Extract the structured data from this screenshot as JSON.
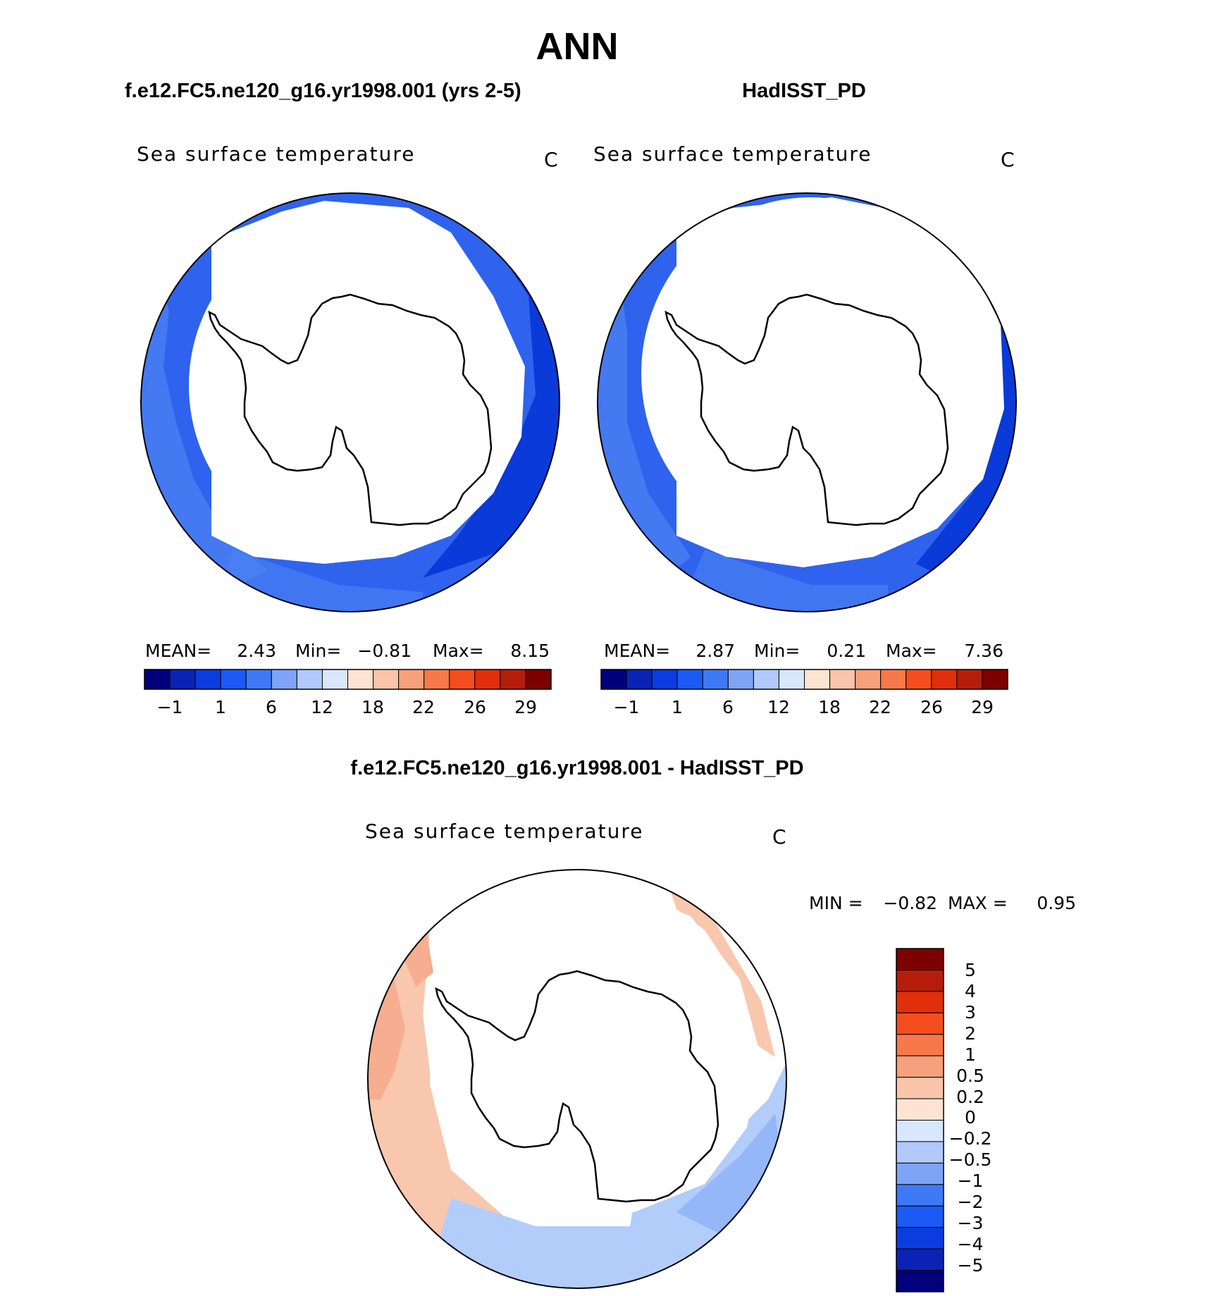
{
  "figure": {
    "title": "ANN",
    "colors": {
      "coast": "#000000",
      "ocean_dark": "#0a3ad8",
      "ocean_mid": "#2f68ef",
      "ocean_light": "#5a8ef6",
      "diff_pos": "#f9c7ad",
      "diff_pos2": "#f6ad90",
      "diff_neg": "#b3cdfa",
      "diff_neg2": "#8fb2f6"
    }
  },
  "panels": [
    {
      "header": "f.e12.FC5.ne120_g16.yr1998.001 (yrs 2-5)",
      "variable": "Sea surface temperature",
      "units": "C",
      "stats": {
        "mean_label": "MEAN=",
        "mean": "2.43",
        "min_label": "Min=",
        "min": "−0.81",
        "max_label": "Max=",
        "max": "8.15"
      },
      "colorbar_labels": [
        "−1",
        "1",
        "6",
        "12",
        "18",
        "22",
        "26",
        "29"
      ]
    },
    {
      "header": "HadISST_PD",
      "variable": "Sea surface temperature",
      "units": "C",
      "stats": {
        "mean_label": "MEAN=",
        "mean": "2.87",
        "min_label": "Min=",
        "min": "0.21",
        "max_label": "Max=",
        "max": "7.36"
      },
      "colorbar_labels": [
        "−1",
        "1",
        "6",
        "12",
        "18",
        "22",
        "26",
        "29"
      ]
    }
  ],
  "diff_panel": {
    "header": "f.e12.FC5.ne120_g16.yr1998.001 - HadISST_PD",
    "variable": "Sea surface temperature",
    "units": "C",
    "stats": {
      "min_label": "MIN =",
      "min": "−0.82",
      "max_label": "MAX =",
      "max": "0.95"
    },
    "colorbar_labels": [
      "5",
      "4",
      "3",
      "2",
      "1",
      "0.5",
      "0.2",
      "0",
      "−0.2",
      "−0.5",
      "−1",
      "−2",
      "−3",
      "−4",
      "−5"
    ]
  },
  "sst_palette": [
    "#00007d",
    "#0a23b4",
    "#0b3ce0",
    "#1c5af5",
    "#3f78f6",
    "#7ea4f8",
    "#b1c9fb",
    "#d9e7fd",
    "#fde4d2",
    "#fac5aa",
    "#f7a07c",
    "#f7794a",
    "#f54d1e",
    "#e12f0b",
    "#b51d0a",
    "#7d0000"
  ],
  "diff_palette": [
    "#7d0000",
    "#b51d0a",
    "#e12f0b",
    "#f54d1e",
    "#f7794a",
    "#f7a07c",
    "#fac5aa",
    "#fde4d2",
    "#d9e7fd",
    "#b1c9fb",
    "#7ea4f8",
    "#3f78f6",
    "#1c5af5",
    "#0b3ce0",
    "#0a23b4",
    "#00007d"
  ]
}
